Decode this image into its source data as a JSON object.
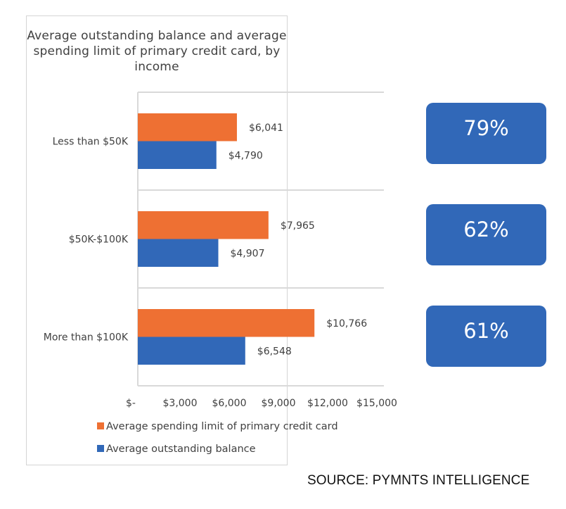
{
  "chart_data": {
    "type": "bar",
    "orientation": "horizontal",
    "title": "Average outstanding balance and average spending limit of primary credit card, by income",
    "title_lines": [
      "Average outstanding balance and average",
      "spending limit of primary credit card, by",
      "income"
    ],
    "categories": [
      "Less than $50K",
      "$50K-$100K",
      "More than $100K"
    ],
    "series": [
      {
        "name": "Average spending limit of primary credit card",
        "color": "#ee7033",
        "values": [
          6041,
          7965,
          10766
        ],
        "labels": [
          "$6,041",
          "$7,965",
          "$10,766"
        ]
      },
      {
        "name": "Average outstanding balance",
        "color": "#3168b8",
        "values": [
          4790,
          4907,
          6548
        ],
        "labels": [
          "$4,790",
          "$4,907",
          "$6,548"
        ]
      }
    ],
    "xlim": [
      0,
      15000
    ],
    "xticks": [
      0,
      3000,
      6000,
      9000,
      12000,
      15000
    ],
    "xtick_labels": [
      "$-",
      "$3,000",
      "$6,000",
      "$9,000",
      "$12,000",
      "$15,000"
    ],
    "xlabel": "",
    "ylabel": "",
    "grid": "horizontal separators between categories",
    "legend_position": "bottom"
  },
  "annotations": {
    "utilization_badges": [
      "79%",
      "62%",
      "61%"
    ],
    "badge_color": "#3168b8"
  },
  "source": "SOURCE: PYMNTS INTELLIGENCE"
}
